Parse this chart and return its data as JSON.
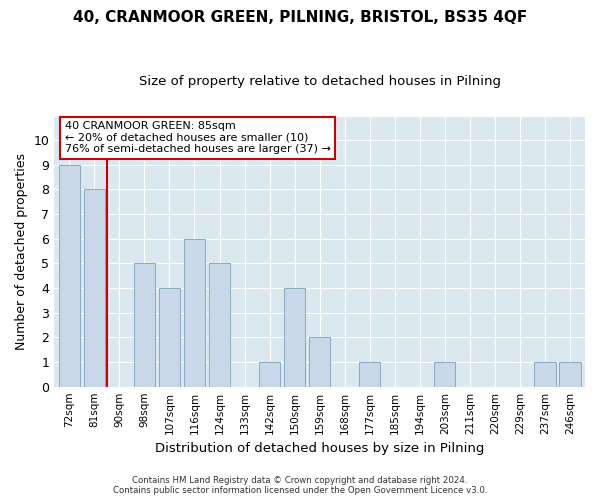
{
  "title1": "40, CRANMOOR GREEN, PILNING, BRISTOL, BS35 4QF",
  "title2": "Size of property relative to detached houses in Pilning",
  "xlabel": "Distribution of detached houses by size in Pilning",
  "ylabel": "Number of detached properties",
  "categories": [
    "72sqm",
    "81sqm",
    "90sqm",
    "98sqm",
    "107sqm",
    "116sqm",
    "124sqm",
    "133sqm",
    "142sqm",
    "150sqm",
    "159sqm",
    "168sqm",
    "177sqm",
    "185sqm",
    "194sqm",
    "203sqm",
    "211sqm",
    "220sqm",
    "229sqm",
    "237sqm",
    "246sqm"
  ],
  "values": [
    9,
    8,
    0,
    5,
    4,
    6,
    5,
    0,
    1,
    4,
    2,
    0,
    1,
    0,
    0,
    1,
    0,
    0,
    0,
    1,
    1
  ],
  "bar_color": "#c8d8e8",
  "bar_edge_color": "#8aaabf",
  "red_line_x": 1.5,
  "annotation_line1": "40 CRANMOOR GREEN: 85sqm",
  "annotation_line2": "← 20% of detached houses are smaller (10)",
  "annotation_line3": "76% of semi-detached houses are larger (37) →",
  "annotation_box_color": "#ffffff",
  "annotation_box_edge": "#cc0000",
  "red_line_color": "#cc0000",
  "ylim": [
    0,
    11
  ],
  "yticks": [
    0,
    1,
    2,
    3,
    4,
    5,
    6,
    7,
    8,
    9,
    10,
    11
  ],
  "footer1": "Contains HM Land Registry data © Crown copyright and database right 2024.",
  "footer2": "Contains public sector information licensed under the Open Government Licence v3.0.",
  "bg_color": "#ffffff",
  "plot_bg_color": "#dce8f0",
  "grid_color": "#ffffff",
  "title1_fontsize": 11,
  "title2_fontsize": 9.5
}
